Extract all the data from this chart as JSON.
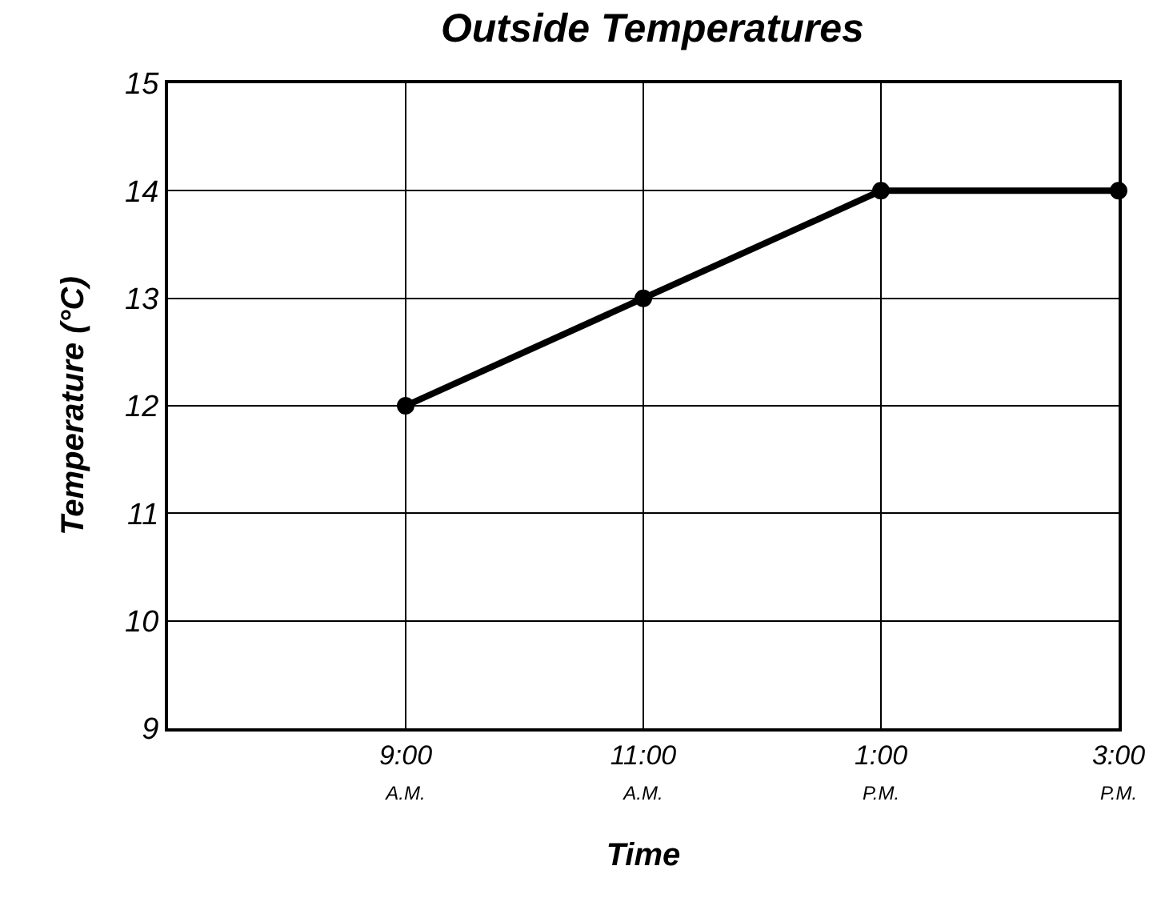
{
  "chart_data": {
    "type": "line",
    "title": "Outside Temperatures",
    "xlabel": "Time",
    "ylabel": "Temperature (°C)",
    "x": [
      9,
      11,
      13,
      15
    ],
    "series": [
      {
        "color": "#000000",
        "values": [
          12,
          13,
          14,
          14
        ]
      }
    ],
    "xlim": [
      7,
      15
    ],
    "xticks": [
      {
        "value": 9,
        "label": "9:00\nA.M."
      },
      {
        "value": 11,
        "label": "11:00\nA.M."
      },
      {
        "value": 13,
        "label": "1:00\nP.M."
      },
      {
        "value": 15,
        "label": "3:00\nP.M."
      }
    ],
    "ylim": [
      9,
      15
    ],
    "yticks": [
      9,
      10,
      11,
      12,
      13,
      14,
      15
    ],
    "grid": true,
    "marker": "circle",
    "line_style": "solid"
  }
}
